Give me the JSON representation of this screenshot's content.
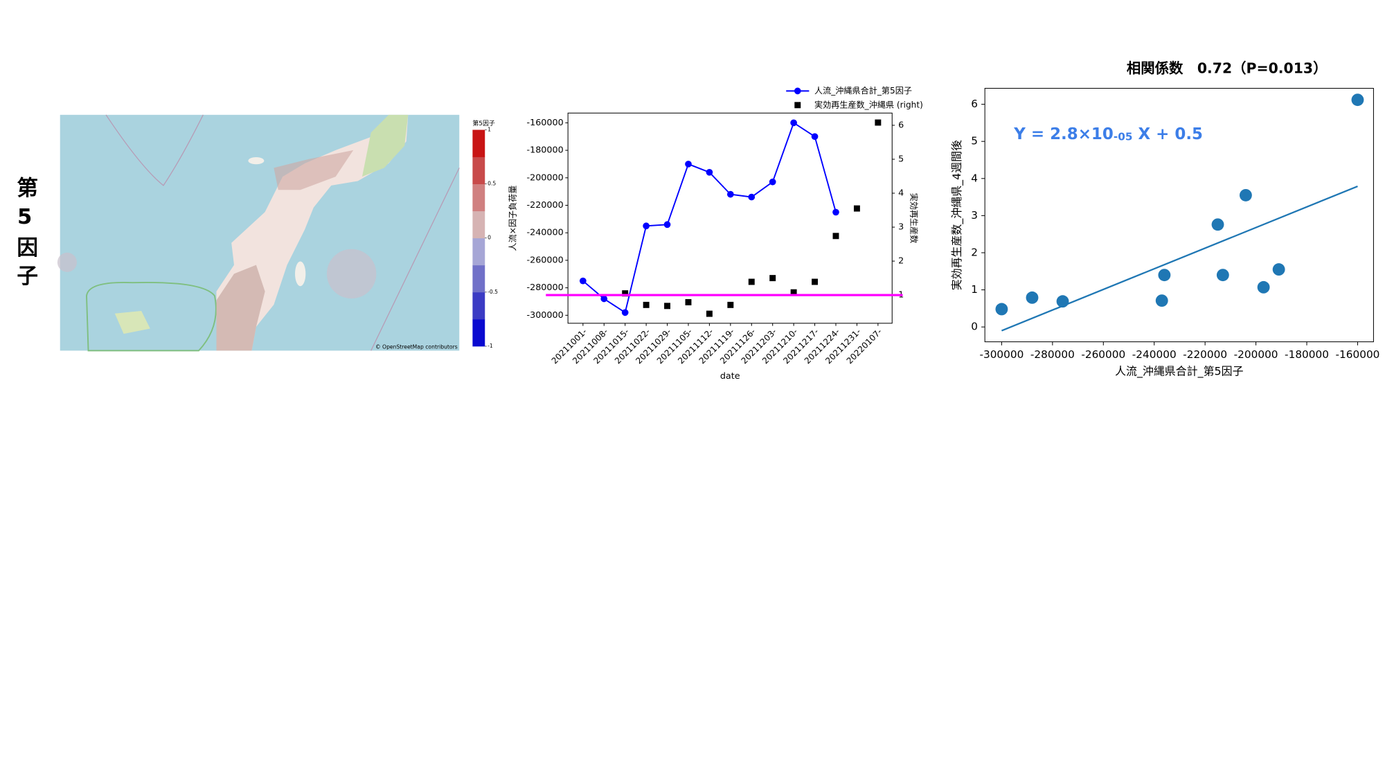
{
  "slide_label": "第5因子",
  "map": {
    "colorbar": {
      "title": "第5因子",
      "clim": [
        -1,
        1
      ],
      "ticks": [
        1,
        0.5,
        0,
        -0.5,
        -1
      ],
      "colors": [
        "#0a0ad0",
        "#3b3bc4",
        "#7070c8",
        "#a6a6d6",
        "#d6b3b3",
        "#d08080",
        "#c84a4a",
        "#c81414"
      ]
    },
    "attribution": "© OpenStreetMap contributors"
  },
  "chart_data": [
    {
      "type": "line",
      "categories": [
        "20211001-",
        "20211008-",
        "20211015-",
        "20211022-",
        "20211029-",
        "20211105-",
        "20211112-",
        "20211119-",
        "20211126-",
        "20211203-",
        "20211210-",
        "20211217-",
        "20211224-",
        "20211231-",
        "20220107-"
      ],
      "series": [
        {
          "name": "人流_沖縄県合計_第5因子",
          "color": "#0000ff",
          "marker": "circle",
          "line": true,
          "values": [
            -275000,
            -288000,
            -298000,
            -235000,
            -234000,
            -190000,
            -196000,
            -212000,
            -214000,
            -203000,
            -160000,
            -170000,
            -225000,
            null,
            null
          ]
        },
        {
          "name": "実効再生産数_沖縄県 (right)",
          "color": "#000000",
          "marker": "square",
          "line": false,
          "axis": "y2",
          "values": [
            null,
            null,
            1.05,
            0.71,
            0.68,
            0.79,
            0.45,
            0.71,
            1.39,
            1.5,
            1.08,
            1.39,
            2.74,
            3.55,
            6.08
          ]
        }
      ],
      "xlabel": "date",
      "ylabel": "人流×因子負荷量",
      "y2label": "実効再生産数",
      "ylim": [
        -305800,
        -152900
      ],
      "yticks": [
        -160000,
        -180000,
        -200000,
        -220000,
        -240000,
        -260000,
        -280000,
        -300000
      ],
      "y2lim": [
        0.17,
        6.36
      ],
      "y2ticks": [
        1,
        2,
        3,
        4,
        5,
        6
      ],
      "reference_line": {
        "value": 1,
        "axis": "y2",
        "color": "#ff00ff"
      },
      "legend": "upper right"
    },
    {
      "type": "scatter",
      "title": "相関係数　0.72（P=0.013）",
      "annotation": [
        "Y = 2.8×10",
        "-05",
        " X + 0.5"
      ],
      "annotation_color": "#3c7ee8",
      "x": [
        -300000,
        -288000,
        -276000,
        -237000,
        -236000,
        -215000,
        -213000,
        -204000,
        -197000,
        -191000,
        -160000
      ],
      "values": [
        0.48,
        0.79,
        0.69,
        0.71,
        1.4,
        2.76,
        1.4,
        3.55,
        1.07,
        1.55,
        6.12
      ],
      "color": "#1f77b4",
      "fit_line": {
        "x": [
          -300000,
          -160000
        ],
        "values": [
          -0.1,
          3.79
        ]
      },
      "xlabel": "人流_沖縄県合計_第5因子",
      "ylabel": "実効再生産数_沖縄県_4週間後",
      "xlim": [
        -306600,
        -153750
      ],
      "xticks": [
        -300000,
        -280000,
        -260000,
        -240000,
        -220000,
        -200000,
        -180000,
        -160000
      ],
      "ylim": [
        -0.4,
        6.43
      ],
      "yticks": [
        0,
        1,
        2,
        3,
        4,
        5,
        6
      ]
    }
  ]
}
